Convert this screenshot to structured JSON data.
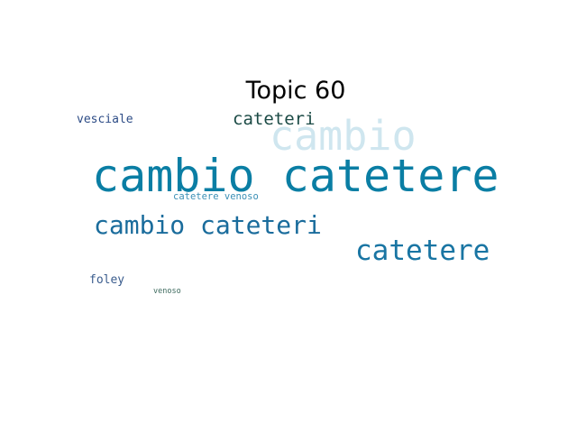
{
  "title": "Topic 60",
  "words": [
    {
      "id": "w-cambio-catetere",
      "text": "cambio catetere",
      "color": "#0a7ea4"
    },
    {
      "id": "w-cambio",
      "text": "cambio",
      "color": "#cfe6ef"
    },
    {
      "id": "w-cambio-cateteri",
      "text": "cambio cateteri",
      "color": "#1a6c9c"
    },
    {
      "id": "w-catetere",
      "text": "catetere",
      "color": "#1975a3"
    },
    {
      "id": "w-cateteri",
      "text": "cateteri",
      "color": "#1b4a45"
    },
    {
      "id": "w-vesciale",
      "text": "vesciale",
      "color": "#2d4c86"
    },
    {
      "id": "w-catetere-venoso",
      "text": "catetere venoso",
      "color": "#3b8fb5"
    },
    {
      "id": "w-foley",
      "text": "foley",
      "color": "#3a5c8d"
    },
    {
      "id": "w-venoso",
      "text": "venoso",
      "color": "#3d6a5e"
    }
  ]
}
